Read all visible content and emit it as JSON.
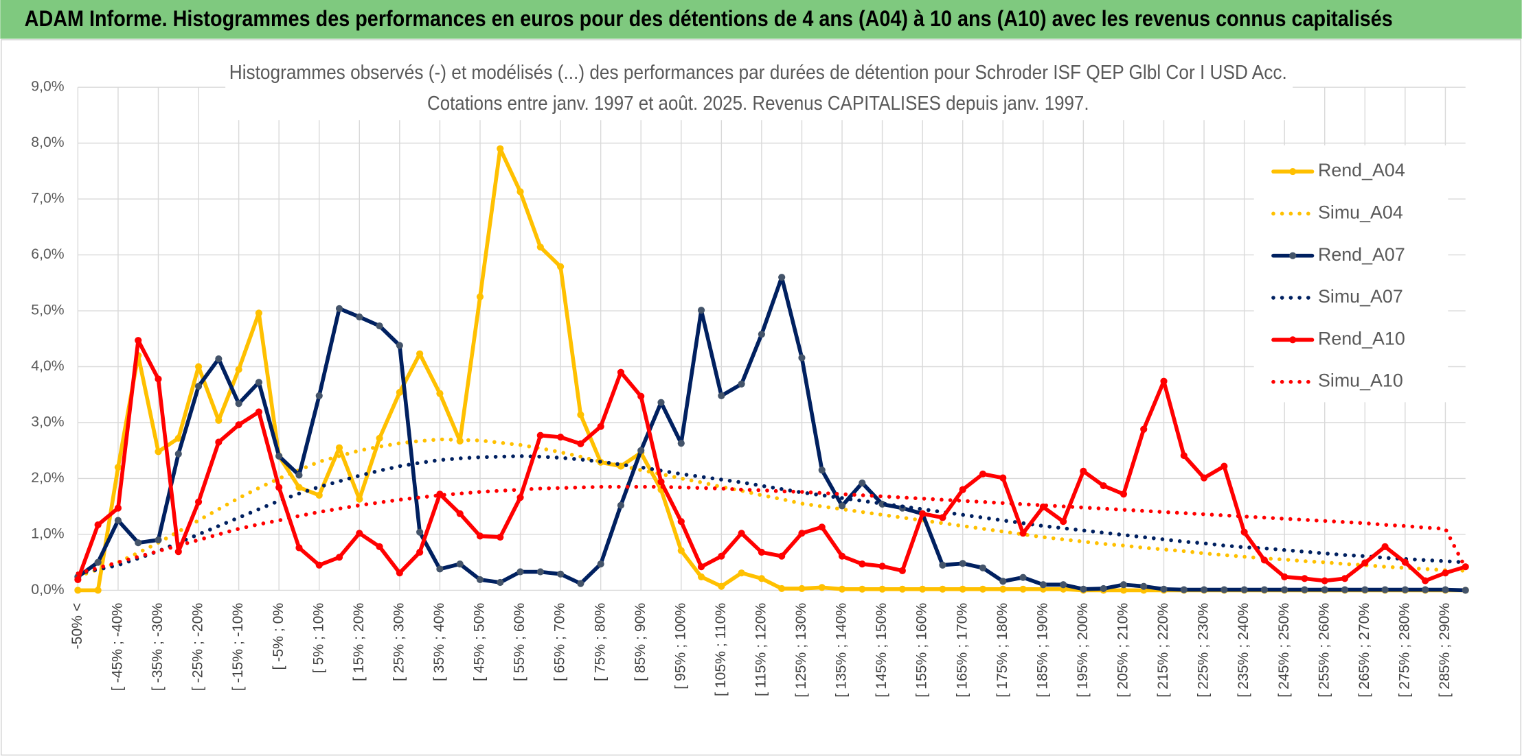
{
  "chart_data": {
    "type": "line",
    "header": "ADAM Informe. Histogrammes des performances en euros pour des détentions de 4 ans (A04) à 10 ans (A10) avec les revenus connus capitalisés",
    "title": "Histogrammes observés (-) et modélisés (...) des performances par durées de détention pour Schroder ISF QEP Glbl Cor I USD Acc.",
    "subtitle": "Cotations entre janv. 1997 et août. 2025. Revenus CAPITALISES depuis janv. 1997.",
    "categories": [
      "-50% <",
      null,
      "[ -45% ; -40%",
      null,
      "[ -35% ; -30%",
      null,
      "[ -25% ; -20%",
      null,
      "[ -15% ; -10%",
      null,
      "[ -5% ; 0%",
      null,
      "[ 5% ; 10%",
      null,
      "[ 15% ; 20%",
      null,
      "[ 25% ; 30%",
      null,
      "[ 35% ; 40%",
      null,
      "[ 45% ; 50%",
      null,
      "[ 55% ; 60%",
      null,
      "[ 65% ; 70%",
      null,
      "[ 75% ; 80%",
      null,
      "[ 85% ; 90%",
      null,
      "[ 95% ; 100%",
      null,
      "[ 105% ; 110%",
      null,
      "[ 115% ; 120%",
      null,
      "[ 125% ; 130%",
      null,
      "[ 135% ; 140%",
      null,
      "[ 145% ; 150%",
      null,
      "[ 155% ; 160%",
      null,
      "[ 165% ; 170%",
      null,
      "[ 175% ; 180%",
      null,
      "[ 185% ; 190%",
      null,
      "[ 195% ; 200%",
      null,
      "[ 205% ; 210%",
      null,
      "[ 215% ; 220%",
      null,
      "[ 225% ; 230%",
      null,
      "[ 235% ; 240%",
      null,
      "[ 245% ; 250%",
      null,
      "[ 255% ; 260%",
      null,
      "[ 265% ; 270%",
      null,
      "[ 275% ; 280%",
      null,
      "[ 285% ; 290%",
      null
    ],
    "series": [
      {
        "name": "Rend_A04",
        "color": "#ffc000",
        "linestyle": "solid",
        "markers": true,
        "values": [
          0,
          0,
          2.2,
          4.2,
          2.48,
          2.72,
          4.0,
          3.04,
          3.95,
          4.96,
          2.4,
          1.84,
          1.7,
          2.55,
          1.63,
          2.72,
          3.54,
          4.23,
          3.52,
          2.67,
          5.25,
          7.9,
          7.13,
          6.14,
          5.79,
          3.14,
          2.29,
          2.22,
          2.46,
          1.8,
          0.71,
          0.24,
          0.07,
          0.31,
          0.21,
          0.03,
          0.03,
          0.05,
          0.02,
          0.02,
          0.02,
          0.02,
          0.02,
          0.02,
          0.02,
          0.02,
          0.02,
          0.02,
          0.02,
          0.02,
          0,
          0,
          0,
          0,
          0,
          0,
          0,
          0,
          0,
          0,
          0,
          0,
          0,
          0,
          0,
          0,
          0,
          0,
          0,
          0
        ]
      },
      {
        "name": "Simu_A04",
        "color": "#ffc000",
        "linestyle": "dotted",
        "markers": false,
        "values": [
          0.25,
          0.37,
          0.5,
          0.67,
          0.85,
          1.05,
          1.25,
          1.45,
          1.65,
          1.83,
          2.0,
          2.15,
          2.3,
          2.4,
          2.5,
          2.57,
          2.63,
          2.67,
          2.7,
          2.69,
          2.68,
          2.64,
          2.6,
          2.54,
          2.47,
          2.39,
          2.3,
          2.23,
          2.15,
          2.08,
          2.0,
          1.93,
          1.85,
          1.78,
          1.7,
          1.63,
          1.55,
          1.5,
          1.45,
          1.4,
          1.35,
          1.3,
          1.25,
          1.2,
          1.15,
          1.1,
          1.05,
          1.0,
          0.95,
          0.91,
          0.87,
          0.83,
          0.8,
          0.76,
          0.73,
          0.7,
          0.66,
          0.63,
          0.6,
          0.57,
          0.55,
          0.52,
          0.5,
          0.47,
          0.45,
          0.42,
          0.4,
          0.38,
          0.36,
          0.35
        ]
      },
      {
        "name": "Rend_A07",
        "color": "#002060",
        "marker_color": "#44546a",
        "linestyle": "solid",
        "markers": true,
        "values": [
          0.24,
          0.5,
          1.25,
          0.85,
          0.9,
          2.44,
          3.65,
          4.14,
          3.34,
          3.72,
          2.4,
          2.06,
          3.48,
          5.04,
          4.89,
          4.73,
          4.38,
          1.04,
          0.38,
          0.47,
          0.19,
          0.14,
          0.33,
          0.33,
          0.29,
          0.12,
          0.47,
          1.52,
          2.5,
          3.36,
          2.63,
          5.01,
          3.48,
          3.69,
          4.58,
          5.6,
          4.16,
          2.15,
          1.51,
          1.92,
          1.54,
          1.47,
          1.37,
          0.45,
          0.48,
          0.4,
          0.16,
          0.23,
          0.1,
          0.1,
          0.02,
          0.03,
          0.1,
          0.07,
          0.02,
          0.01,
          0.01,
          0.01,
          0.01,
          0.01,
          0.01,
          0.01,
          0.01,
          0.01,
          0.01,
          0.01,
          0.01,
          0.01,
          0.01,
          0
        ]
      },
      {
        "name": "Simu_A07",
        "color": "#002060",
        "linestyle": "dotted",
        "markers": false,
        "values": [
          0.3,
          0.37,
          0.45,
          0.57,
          0.7,
          0.85,
          1.0,
          1.15,
          1.3,
          1.45,
          1.6,
          1.73,
          1.85,
          1.95,
          2.05,
          2.14,
          2.22,
          2.28,
          2.33,
          2.36,
          2.38,
          2.39,
          2.4,
          2.39,
          2.37,
          2.34,
          2.3,
          2.25,
          2.2,
          2.14,
          2.08,
          2.03,
          1.98,
          1.93,
          1.87,
          1.81,
          1.75,
          1.7,
          1.65,
          1.6,
          1.55,
          1.5,
          1.45,
          1.4,
          1.35,
          1.3,
          1.25,
          1.2,
          1.15,
          1.11,
          1.07,
          1.03,
          0.99,
          0.95,
          0.91,
          0.87,
          0.84,
          0.8,
          0.77,
          0.75,
          0.72,
          0.69,
          0.66,
          0.63,
          0.61,
          0.58,
          0.56,
          0.54,
          0.52,
          0.5
        ]
      },
      {
        "name": "Rend_A10",
        "color": "#ff0000",
        "linestyle": "solid",
        "markers": true,
        "values": [
          0.19,
          1.17,
          1.47,
          4.47,
          3.78,
          0.69,
          1.58,
          2.65,
          2.96,
          3.19,
          1.84,
          0.76,
          0.45,
          0.59,
          1.02,
          0.78,
          0.31,
          0.68,
          1.72,
          1.37,
          0.97,
          0.95,
          1.66,
          2.77,
          2.74,
          2.62,
          2.93,
          3.9,
          3.47,
          1.94,
          1.23,
          0.42,
          0.61,
          1.02,
          0.68,
          0.61,
          1.02,
          1.13,
          0.61,
          0.47,
          0.43,
          0.35,
          1.37,
          1.3,
          1.8,
          2.08,
          2.01,
          1.02,
          1.49,
          1.23,
          2.13,
          1.87,
          1.72,
          2.88,
          3.74,
          2.41,
          2.01,
          2.22,
          1.04,
          0.54,
          0.24,
          0.21,
          0.17,
          0.21,
          0.49,
          0.78,
          0.5,
          0.17,
          0.31,
          0.42
        ]
      },
      {
        "name": "Simu_A10",
        "color": "#ff0000",
        "linestyle": "dotted",
        "markers": false,
        "values": [
          0.3,
          0.4,
          0.5,
          0.6,
          0.7,
          0.8,
          0.9,
          1.0,
          1.1,
          1.18,
          1.25,
          1.33,
          1.4,
          1.46,
          1.52,
          1.57,
          1.62,
          1.66,
          1.7,
          1.73,
          1.76,
          1.78,
          1.8,
          1.82,
          1.83,
          1.84,
          1.85,
          1.85,
          1.85,
          1.85,
          1.84,
          1.83,
          1.82,
          1.8,
          1.79,
          1.77,
          1.76,
          1.74,
          1.72,
          1.7,
          1.68,
          1.66,
          1.64,
          1.62,
          1.6,
          1.58,
          1.56,
          1.54,
          1.52,
          1.5,
          1.48,
          1.46,
          1.44,
          1.42,
          1.4,
          1.38,
          1.36,
          1.34,
          1.32,
          1.3,
          1.28,
          1.26,
          1.24,
          1.22,
          1.2,
          1.17,
          1.15,
          1.12,
          1.1,
          0.4
        ]
      }
    ],
    "ylim": [
      0,
      9
    ],
    "yticks": [
      {
        "value": 0,
        "label": "0,0%"
      },
      {
        "value": 1,
        "label": "1,0%"
      },
      {
        "value": 2,
        "label": "2,0%"
      },
      {
        "value": 3,
        "label": "3,0%"
      },
      {
        "value": 4,
        "label": "4,0%"
      },
      {
        "value": 5,
        "label": "5,0%"
      },
      {
        "value": 6,
        "label": "6,0%"
      },
      {
        "value": 7,
        "label": "7,0%"
      },
      {
        "value": 8,
        "label": "8,0%"
      },
      {
        "value": 9,
        "label": "9,0%"
      }
    ],
    "grid": true,
    "legend": "right"
  }
}
